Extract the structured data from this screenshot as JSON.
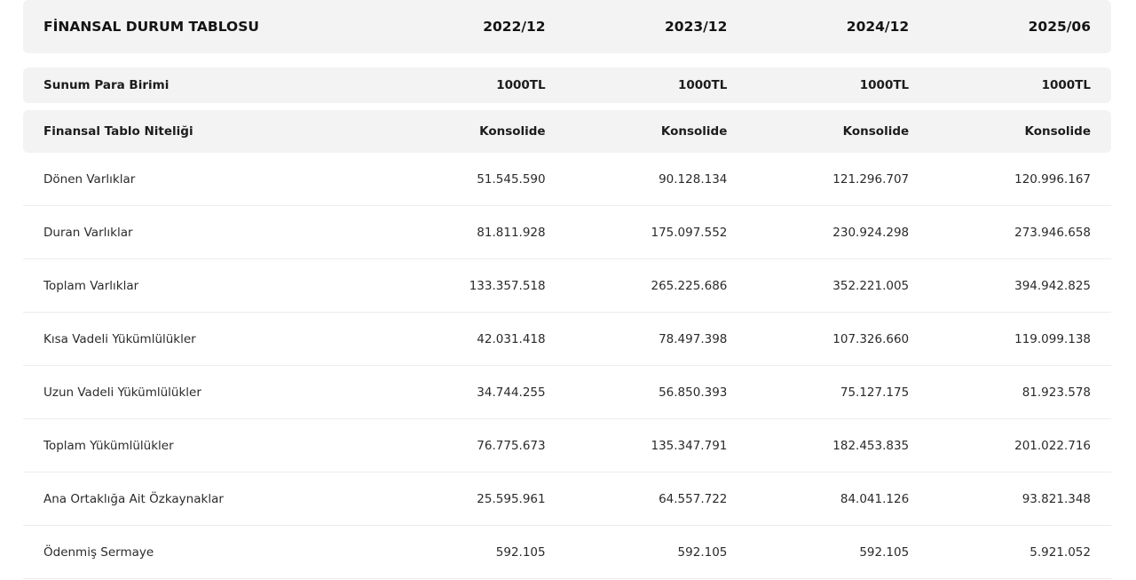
{
  "table": {
    "title": "FİNANSAL DURUM TABLOSU",
    "periods": [
      "2022/12",
      "2023/12",
      "2024/12",
      "2025/06"
    ],
    "meta_rows": [
      {
        "label": "Sunum Para Birimi",
        "values": [
          "1000TL",
          "1000TL",
          "1000TL",
          "1000TL"
        ]
      },
      {
        "label": "Finansal Tablo Niteliği",
        "values": [
          "Konsolide",
          "Konsolide",
          "Konsolide",
          "Konsolide"
        ]
      }
    ],
    "rows": [
      {
        "label": "Dönen Varlıklar",
        "values": [
          "51.545.590",
          "90.128.134",
          "121.296.707",
          "120.996.167"
        ]
      },
      {
        "label": "Duran Varlıklar",
        "values": [
          "81.811.928",
          "175.097.552",
          "230.924.298",
          "273.946.658"
        ]
      },
      {
        "label": "Toplam Varlıklar",
        "values": [
          "133.357.518",
          "265.225.686",
          "352.221.005",
          "394.942.825"
        ]
      },
      {
        "label": "Kısa Vadeli Yükümlülükler",
        "values": [
          "42.031.418",
          "78.497.398",
          "107.326.660",
          "119.099.138"
        ]
      },
      {
        "label": "Uzun Vadeli Yükümlülükler",
        "values": [
          "34.744.255",
          "56.850.393",
          "75.127.175",
          "81.923.578"
        ]
      },
      {
        "label": "Toplam Yükümlülükler",
        "values": [
          "76.775.673",
          "135.347.791",
          "182.453.835",
          "201.022.716"
        ]
      },
      {
        "label": "Ana Ortaklığa Ait Özkaynaklar",
        "values": [
          "25.595.961",
          "64.557.722",
          "84.041.126",
          "93.821.348"
        ]
      },
      {
        "label": "Ödenmiş Sermaye",
        "values": [
          "592.105",
          "592.105",
          "592.105",
          "5.921.052"
        ]
      }
    ]
  }
}
